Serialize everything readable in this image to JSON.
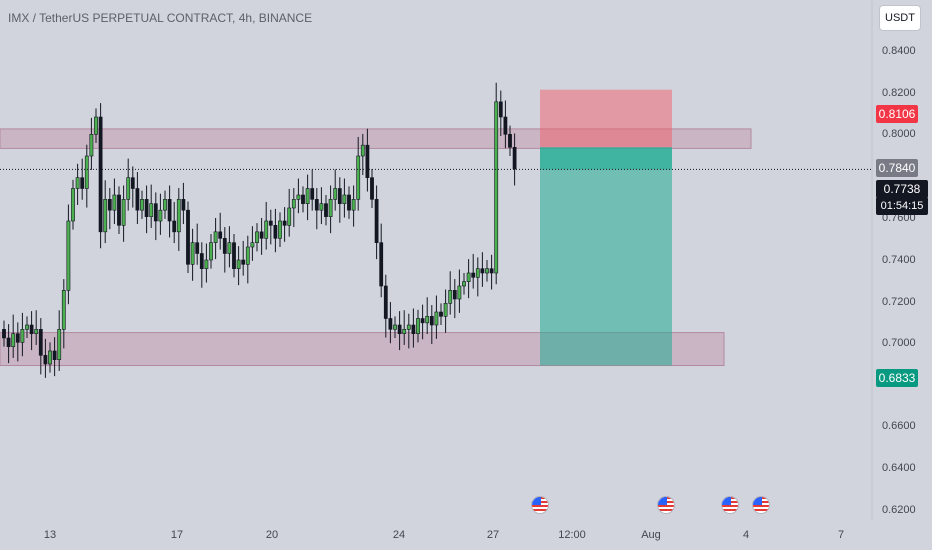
{
  "header": {
    "title": "IMX / TetherUS PERPETUAL CONTRACT, 4h, BINANCE",
    "currency": "USDT"
  },
  "price_axis": {
    "ticks": [
      "0.8400",
      "0.8200",
      "0.8000",
      "0.7600",
      "0.7400",
      "0.7200",
      "0.7000",
      "0.6600",
      "0.6400",
      "0.6200"
    ]
  },
  "time_axis": {
    "ticks": [
      "13",
      "17",
      "20",
      "24",
      "27",
      "12:00",
      "Aug",
      "4",
      "7"
    ]
  },
  "badges": {
    "stop": "0.8106",
    "entry": "0.7840",
    "last": "0.7738",
    "countdown": "01:54:15",
    "target": "0.6833"
  },
  "events": [
    "us-flag-icon",
    "us-flag-icon",
    "us-flag-icon",
    "us-flag-icon"
  ],
  "colors": {
    "background": "#d1d4dc",
    "up_candle": "#4caf50",
    "down_candle": "#131722",
    "zone": "#c49bb0",
    "stop_zone": "#f7525f",
    "target_zone": "#22ab94",
    "stop_badge": "#f23645",
    "entry_badge": "#787b86",
    "last_badge": "#131722",
    "target_badge": "#089981"
  },
  "chart_data": {
    "type": "candlestick",
    "title": "IMX / TetherUS PERPETUAL CONTRACT, 4h, BINANCE",
    "ylim": [
      0.612,
      0.852
    ],
    "zones": [
      {
        "low": 0.7835,
        "high": 0.7925
      },
      {
        "low": 0.6833,
        "high": 0.6985
      }
    ],
    "position": {
      "entry": 0.784,
      "stop": 0.8106,
      "target": 0.6833
    },
    "last_price": 0.7738,
    "closes": [
      0.696,
      0.692,
      0.698,
      0.694,
      0.7,
      0.702,
      0.698,
      0.7,
      0.688,
      0.684,
      0.69,
      0.686,
      0.7,
      0.718,
      0.75,
      0.765,
      0.77,
      0.765,
      0.78,
      0.79,
      0.798,
      0.745,
      0.76,
      0.755,
      0.762,
      0.748,
      0.76,
      0.77,
      0.765,
      0.755,
      0.76,
      0.752,
      0.758,
      0.75,
      0.755,
      0.76,
      0.75,
      0.745,
      0.76,
      0.755,
      0.73,
      0.74,
      0.735,
      0.728,
      0.732,
      0.74,
      0.745,
      0.742,
      0.735,
      0.74,
      0.728,
      0.732,
      0.73,
      0.738,
      0.74,
      0.745,
      0.742,
      0.75,
      0.748,
      0.742,
      0.75,
      0.748,
      0.756,
      0.76,
      0.762,
      0.758,
      0.765,
      0.76,
      0.755,
      0.758,
      0.752,
      0.76,
      0.765,
      0.758,
      0.762,
      0.755,
      0.76,
      0.78,
      0.785,
      0.77,
      0.76,
      0.74,
      0.72,
      0.705,
      0.7,
      0.702,
      0.698,
      0.7,
      0.702,
      0.698,
      0.705,
      0.703,
      0.706,
      0.702,
      0.708,
      0.706,
      0.712,
      0.718,
      0.714,
      0.72,
      0.722,
      0.726,
      0.724,
      0.728,
      0.726,
      0.728,
      0.726,
      0.805,
      0.798,
      0.79,
      0.784,
      0.774
    ]
  }
}
